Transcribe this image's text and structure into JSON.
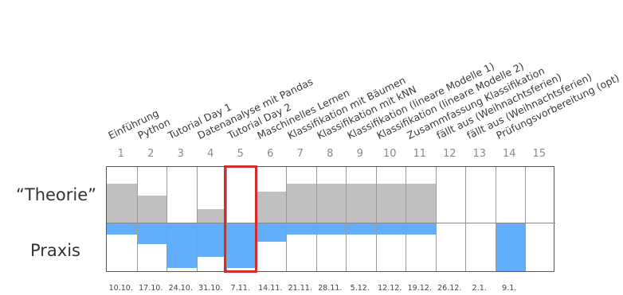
{
  "row_labels": {
    "theory": "“Theorie”",
    "practice": "Praxis"
  },
  "colors": {
    "theory": "#c0c0c0",
    "practice": "#63aefb",
    "highlight": "#d62b2b"
  },
  "weeks": [
    {
      "num": "1",
      "topic": "Einführung",
      "date": "10.10.",
      "theory": 0.7,
      "practice": 0.24
    },
    {
      "num": "2",
      "topic": "Python",
      "date": "17.10.",
      "theory": 0.49,
      "practice": 0.44
    },
    {
      "num": "3",
      "topic": "Tutorial Day 1",
      "date": "24.10.",
      "theory": 0.0,
      "practice": 0.94
    },
    {
      "num": "4",
      "topic": "Datenanalyse mit Pandas",
      "date": "31.10.",
      "theory": 0.24,
      "practice": 0.71
    },
    {
      "num": "5",
      "topic": "Tutorial Day 2",
      "date": "7.11.",
      "theory": 0.0,
      "practice": 0.94
    },
    {
      "num": "6",
      "topic": "Maschinelles Lernen",
      "date": "14.11.",
      "theory": 0.56,
      "practice": 0.4
    },
    {
      "num": "7",
      "topic": "Klassifikation mit Bäumen",
      "date": "21.11.",
      "theory": 0.7,
      "practice": 0.24
    },
    {
      "num": "8",
      "topic": "Klassifikation mit kNN",
      "date": "28.11.",
      "theory": 0.7,
      "practice": 0.24
    },
    {
      "num": "9",
      "topic": "Klassifikation (lineare Modelle 1)",
      "date": "5.12.",
      "theory": 0.7,
      "practice": 0.24
    },
    {
      "num": "10",
      "topic": "Klassifikation (lineare Modelle 2)",
      "date": "12.12.",
      "theory": 0.7,
      "practice": 0.24
    },
    {
      "num": "11",
      "topic": "Zusammfassung Klassifikation",
      "date": "19.12.",
      "theory": 0.7,
      "practice": 0.24
    },
    {
      "num": "12",
      "topic": "fällt aus (Weihnachtsferien)",
      "date": "26.12.",
      "theory": 0.0,
      "practice": 0.0
    },
    {
      "num": "13",
      "topic": "fällt aus (Weihnachtsferien)",
      "date": "2.1.",
      "theory": 0.0,
      "practice": 0.0
    },
    {
      "num": "14",
      "topic": "Prüfungsvorbereitung (opt)",
      "date": "9.1.",
      "theory": 0.0,
      "practice": 1.0
    },
    {
      "num": "15",
      "topic": "",
      "date": "",
      "theory": 0.0,
      "practice": 0.0
    }
  ],
  "highlighted_week": "5"
}
